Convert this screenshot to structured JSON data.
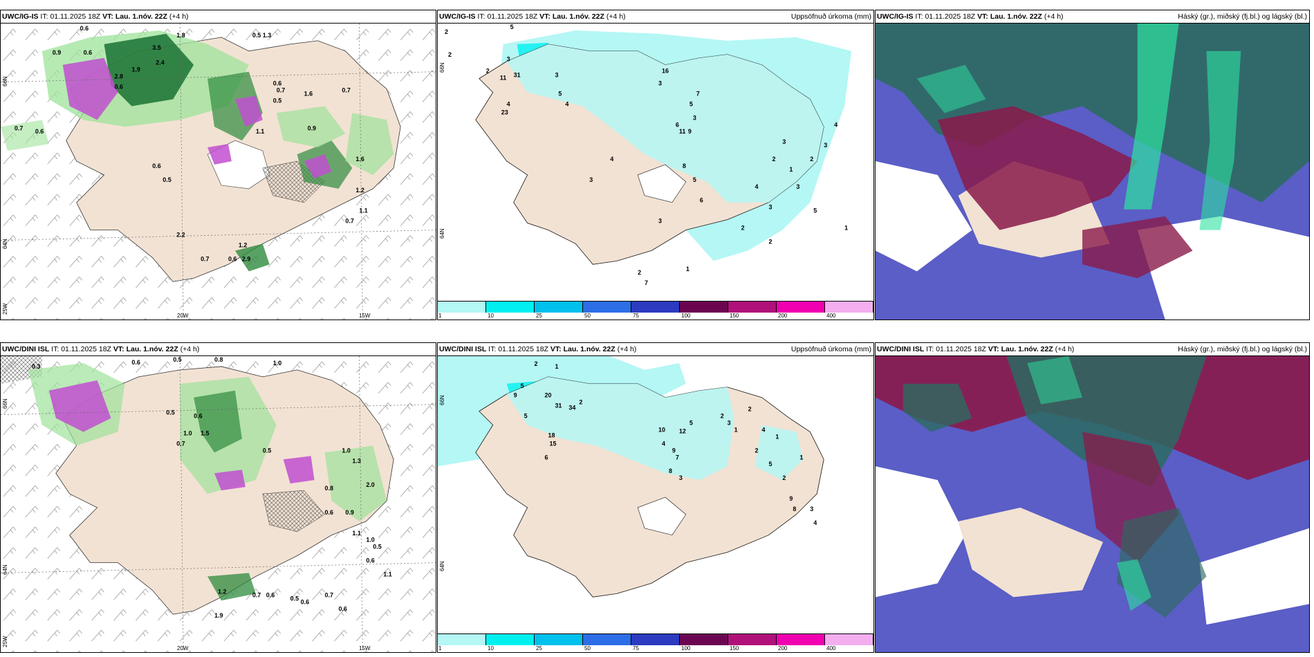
{
  "panels": [
    {
      "id": "r1c1",
      "model": "UWC/IG-IS",
      "it_label": "IT:",
      "it": "01.11.2025 18Z",
      "vt_label": "VT:",
      "vt": "Lau. 1.nóv. 22Z",
      "lead": "(+4 h)",
      "right_title": "",
      "axes": {
        "lat_top": "66N",
        "lat_mid": "64N",
        "lat_bot": "25W",
        "lon_left": "20W",
        "lon_right": "15W"
      },
      "values": [
        "0.6",
        "1.8",
        "0.5",
        "0.6",
        "0.9",
        "3.5",
        "2.4",
        "1.9",
        "2.8",
        "1.3",
        "0.6",
        "0.7",
        "1.6",
        "0.7",
        "0.9",
        "0.5",
        "1.1",
        "0.6",
        "0.5",
        "1.2",
        "0.6",
        "0.7",
        "1.6",
        "1.2",
        "1.1",
        "0.7",
        "2.2",
        "2.9",
        "0.6",
        "0.6",
        "0.7"
      ]
    },
    {
      "id": "r1c2",
      "model": "UWC/IG-IS",
      "it_label": "IT:",
      "it": "01.11.2025 18Z",
      "vt_label": "VT:",
      "vt": "Lau. 1.nóv. 22Z",
      "lead": "(+4 h)",
      "right_title": "Uppsöfnuð úrkoma (mm)",
      "axes": {
        "lat_mid": "64N",
        "lat_top": "66N"
      },
      "values": [
        "2",
        "5",
        "2",
        "3",
        "2",
        "11",
        "31",
        "23",
        "3",
        "4",
        "5",
        "4",
        "3",
        "16",
        "7",
        "5",
        "6",
        "3",
        "11",
        "9",
        "8",
        "5",
        "6",
        "2",
        "4",
        "3",
        "2",
        "3",
        "1",
        "3",
        "2",
        "3",
        "4",
        "5",
        "2",
        "1",
        "7",
        "2",
        "3",
        "4",
        "3",
        "1"
      ],
      "legend": {
        "ticks": [
          "1",
          "10",
          "25",
          "50",
          "75",
          "100",
          "150",
          "200",
          "400"
        ],
        "colors": [
          "#b4f7f5",
          "#00f0f0",
          "#00c0ee",
          "#2d6ee6",
          "#2c3bbf",
          "#6b0552",
          "#b0107a",
          "#f000b0",
          "#f4aef0"
        ]
      }
    },
    {
      "id": "r1c3",
      "model": "UWC/IG-IS",
      "it_label": "IT:",
      "it": "01.11.2025 18Z",
      "vt_label": "VT:",
      "vt": "Lau. 1.nóv. 22Z",
      "lead": "(+4 h)",
      "right_title": "Háský (gr.), miðský (fj.bl.) og lágský (bl.)"
    },
    {
      "id": "r2c1",
      "model": "UWC/DINI ISL",
      "it_label": "IT:",
      "it": "01.11.2025 18Z",
      "vt_label": "VT:",
      "vt": "Lau. 1.nóv. 22Z",
      "lead": "(+4 h)",
      "right_title": "",
      "axes": {
        "lat_top": "66N",
        "lat_mid": "64N",
        "lat_bot": "25W",
        "lon_left": "20W",
        "lon_right": "15W"
      },
      "values": [
        "0.3",
        "0.6",
        "0.5",
        "0.8",
        "1.0",
        "0.5",
        "0.6",
        "1.5",
        "1.0",
        "0.7",
        "0.5",
        "1.0",
        "1.3",
        "2.0",
        "0.8",
        "0.6",
        "0.9",
        "1.1",
        "1.0",
        "0.5",
        "0.6",
        "1.2",
        "0.7",
        "0.6",
        "0.5",
        "0.6",
        "0.7",
        "0.6",
        "1.1",
        "1.9"
      ]
    },
    {
      "id": "r2c2",
      "model": "UWC/DINI ISL",
      "it_label": "IT:",
      "it": "01.11.2025 18Z",
      "vt_label": "VT:",
      "vt": "Lau. 1.nóv. 22Z",
      "lead": "(+4 h)",
      "right_title": "Uppsöfnuð úrkoma (mm)",
      "axes": {
        "lat_mid": "64N",
        "lat_top": "66N"
      },
      "values": [
        "2",
        "1",
        "5",
        "20",
        "31",
        "34",
        "18",
        "15",
        "9",
        "5",
        "2",
        "6",
        "4",
        "7",
        "8",
        "9",
        "12",
        "10",
        "5",
        "3",
        "2",
        "4",
        "1",
        "2",
        "9",
        "8",
        "3",
        "4",
        "5",
        "2",
        "1",
        "3",
        "2",
        "1"
      ],
      "legend": {
        "ticks": [
          "1",
          "10",
          "25",
          "50",
          "75",
          "100",
          "150",
          "200",
          "400"
        ],
        "colors": [
          "#b4f7f5",
          "#00f0f0",
          "#00c0ee",
          "#2d6ee6",
          "#2c3bbf",
          "#6b0552",
          "#b0107a",
          "#f000b0",
          "#f4aef0"
        ]
      }
    },
    {
      "id": "r2c3",
      "model": "UWC/DINI ISL",
      "it_label": "IT:",
      "it": "01.11.2025 18Z",
      "vt_label": "VT:",
      "vt": "Lau. 1.nóv. 22Z",
      "lead": "(+4 h)",
      "right_title": "Háský (gr.), miðský (fj.bl.) og lágský (bl.)"
    }
  ]
}
